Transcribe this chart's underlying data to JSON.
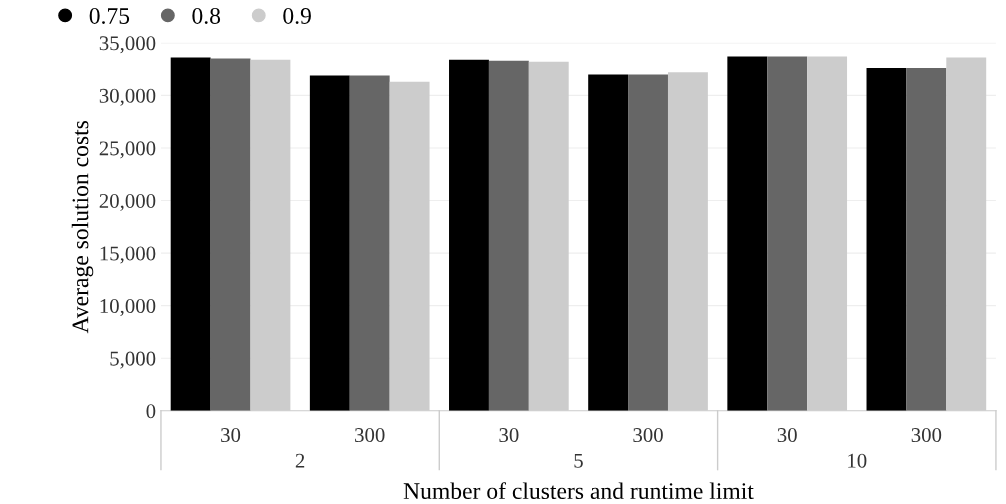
{
  "chart_data": {
    "type": "bar",
    "xlabel": "Number of clusters and runtime limit",
    "ylabel": "Average solution costs",
    "categories": [
      "30",
      "300",
      "30",
      "300",
      "30",
      "300"
    ],
    "annotations": [
      "2",
      "5",
      "10"
    ],
    "series": [
      {
        "name": "0.75",
        "color": "#000000",
        "values": [
          33600,
          31900,
          33400,
          32000,
          33700,
          32600
        ]
      },
      {
        "name": "0.8",
        "color": "#666666",
        "values": [
          33500,
          31900,
          33300,
          32000,
          33700,
          32600
        ]
      },
      {
        "name": "0.9",
        "color": "#cccccc",
        "values": [
          33400,
          31300,
          33200,
          32200,
          33700,
          33600
        ]
      }
    ],
    "ylim": [
      0,
      35000
    ],
    "yticks": [
      {
        "value": 0,
        "label": "0"
      },
      {
        "value": 5000,
        "label": "5,000"
      },
      {
        "value": 10000,
        "label": "10,000"
      },
      {
        "value": 15000,
        "label": "15,000"
      },
      {
        "value": 20000,
        "label": "20,000"
      },
      {
        "value": 25000,
        "label": "25,000"
      },
      {
        "value": 30000,
        "label": "30,000"
      },
      {
        "value": 35000,
        "label": "35,000"
      }
    ],
    "grid": "y",
    "legend": "top left"
  }
}
